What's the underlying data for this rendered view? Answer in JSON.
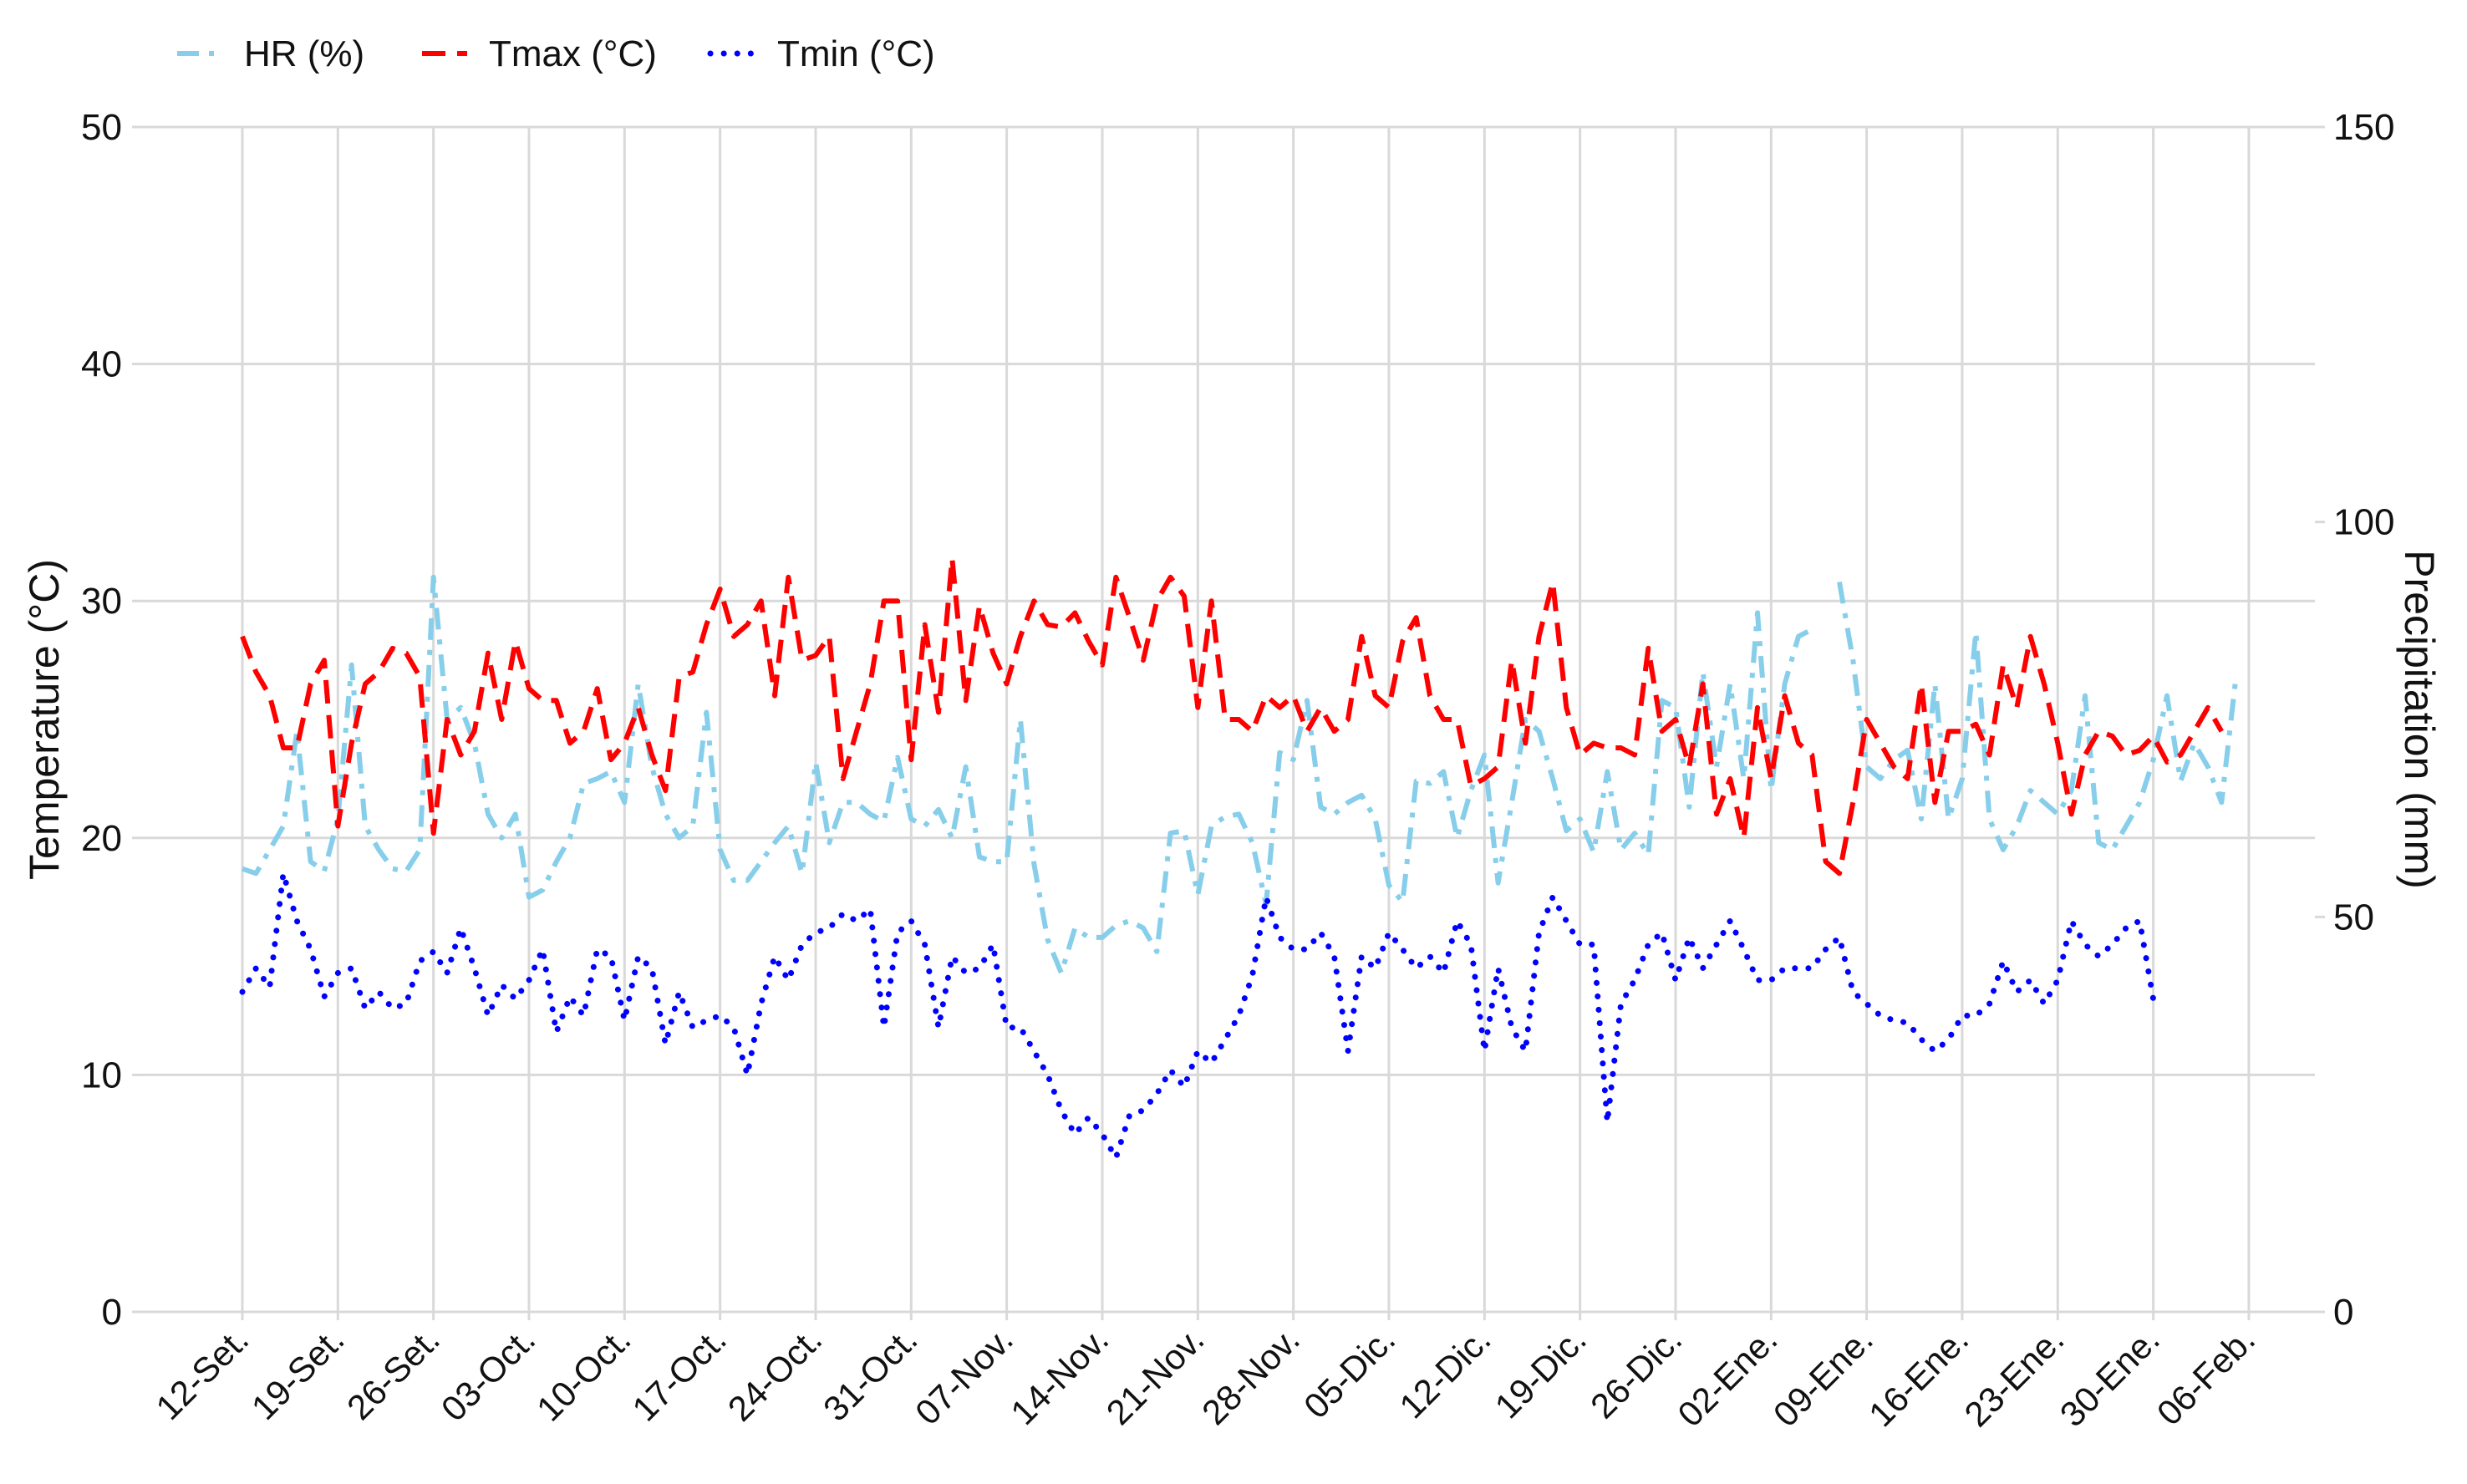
{
  "colors": {
    "hr": "#87CEEB",
    "tmax": "#FF0000",
    "tmin": "#0000FF",
    "precip_fill": "#9898F2",
    "precip_edge": "#4B4BA8"
  },
  "chart_data": {
    "type": "line",
    "legend": {
      "position": "top-left",
      "entries": [
        "HR (%)",
        "Tmax (°C)",
        "Tmin (°C)"
      ]
    },
    "ylabel": "Temperature (°C)",
    "y2label": "Precipitation (mm)",
    "ylim": [
      0,
      50
    ],
    "y2lim": [
      0,
      150
    ],
    "yticks": [
      "0",
      "10",
      "20",
      "30",
      "40",
      "50"
    ],
    "y2ticks": [
      "0",
      "50",
      "100",
      "150"
    ],
    "grid": true,
    "x_ticks": [
      {
        "day": 0,
        "label": "12-Set."
      },
      {
        "day": 7,
        "label": "19-Set."
      },
      {
        "day": 14,
        "label": "26-Set."
      },
      {
        "day": 21,
        "label": "03-Oct."
      },
      {
        "day": 28,
        "label": "10-Oct."
      },
      {
        "day": 35,
        "label": "17-Oct."
      },
      {
        "day": 42,
        "label": "24-Oct."
      },
      {
        "day": 49,
        "label": "31-Oct."
      },
      {
        "day": 56,
        "label": "07-Nov."
      },
      {
        "day": 63,
        "label": "14-Nov."
      },
      {
        "day": 70,
        "label": "21-Nov."
      },
      {
        "day": 77,
        "label": "28-Nov."
      },
      {
        "day": 84,
        "label": "05-Dic."
      },
      {
        "day": 91,
        "label": "12-Dic."
      },
      {
        "day": 98,
        "label": "19-Dic."
      },
      {
        "day": 105,
        "label": "26-Dic."
      },
      {
        "day": 112,
        "label": "02-Ene."
      },
      {
        "day": 119,
        "label": "09-Ene."
      },
      {
        "day": 126,
        "label": "16-Ene."
      },
      {
        "day": 133,
        "label": "23-Ene."
      },
      {
        "day": 140,
        "label": "30-Ene."
      },
      {
        "day": 147,
        "label": "06-Feb."
      }
    ],
    "series": [
      {
        "name": "HR (%)",
        "axis": "left",
        "style": "dashdot",
        "values": [
          18.7,
          18.5,
          19.5,
          20.5,
          24.5,
          19,
          18.6,
          20.8,
          27.3,
          20.5,
          19.5,
          18.7,
          18.6,
          19.5,
          31,
          25,
          25.5,
          24,
          21,
          20,
          21,
          17.5,
          17.8,
          19,
          20,
          22.3,
          22.5,
          22.8,
          21.5,
          26.5,
          23,
          21,
          20,
          20.5,
          25.3,
          19.5,
          18.2,
          18.2,
          19,
          19.8,
          20.5,
          18.5,
          23.2,
          19.8,
          21.5,
          21.5,
          21,
          20.7,
          23.4,
          20.8,
          20.5,
          21.2,
          20,
          23,
          19.2,
          19,
          19,
          25,
          18.9,
          15.7,
          14.3,
          16.2,
          15.8,
          15.8,
          16.3,
          16.5,
          16.2,
          15.2,
          20.2,
          20.3,
          17.6,
          20.5,
          20.9,
          21,
          19.8,
          17.2,
          23.6,
          23.3,
          25.8,
          21.3,
          21,
          21.5,
          21.8,
          20.8,
          18,
          17.3,
          22.4,
          22.3,
          22.8,
          20,
          22,
          23.5,
          18.1,
          21.5,
          25,
          24.5,
          22.5,
          20.3,
          20.8,
          19.4,
          22.8,
          19.5,
          20.2,
          19.3,
          25.8,
          25.5,
          21.3,
          27,
          23,
          26.5,
          22.5,
          29.5,
          22,
          26.5,
          28.5,
          28.8,
          null,
          30.8,
          27.5,
          23,
          22.5,
          23.3,
          23.7,
          20.8,
          26.5,
          20.8,
          22.5,
          28.7,
          20.8,
          19.5,
          20.5,
          22,
          21.5,
          21,
          22,
          26,
          19.8,
          19.5,
          20.5,
          21.5,
          23.3,
          26,
          22.4,
          24,
          23,
          21.5,
          26.5
        ]
      },
      {
        "name": "Tmax (°C)",
        "axis": "left",
        "style": "dashed",
        "values": [
          28.5,
          27,
          26,
          23.8,
          23.8,
          26.5,
          27.5,
          20.5,
          24,
          26.5,
          27,
          28,
          27.8,
          26.8,
          20.2,
          25,
          23.5,
          24.5,
          27.8,
          25,
          28.3,
          26.3,
          25.8,
          25.8,
          24,
          24.5,
          26.3,
          23.3,
          24,
          25.5,
          23.5,
          22,
          26.8,
          27,
          29,
          30.5,
          28.5,
          29,
          30,
          26,
          31,
          27.5,
          27.7,
          28.5,
          22.5,
          24.5,
          26.5,
          30,
          30,
          23.3,
          29,
          25.3,
          31.8,
          25.8,
          29.8,
          27.8,
          26.5,
          28.5,
          30,
          29,
          28.9,
          29.5,
          28.3,
          27.3,
          31,
          29.3,
          27.5,
          30,
          31,
          30.2,
          25.5,
          30,
          25,
          25,
          24.5,
          26,
          25.5,
          26,
          24.5,
          25.5,
          24.5,
          25,
          28.5,
          26,
          25.5,
          28.3,
          29.3,
          26,
          25,
          25,
          22.2,
          22.5,
          23,
          27.5,
          24,
          28.5,
          30.8,
          25.5,
          23.5,
          24,
          23.8,
          23.8,
          23.5,
          28,
          24.5,
          25,
          23,
          26.5,
          21,
          22.5,
          20,
          25.5,
          22.5,
          26,
          24,
          23.5,
          19,
          18.5,
          21.5,
          25,
          24,
          23,
          22.5,
          26.5,
          21.5,
          24.5,
          24.5,
          24.8,
          23.5,
          27.3,
          25.5,
          28.5,
          26.5,
          24,
          21,
          23.5,
          24.5,
          24.3,
          23.5,
          23.7,
          24.3,
          23.2,
          23.5,
          24.5,
          25.5,
          24.5
        ]
      },
      {
        "name": "Tmin (°C)",
        "axis": "left",
        "style": "dotted",
        "values": [
          13.5,
          14.5,
          13.7,
          18.5,
          16.5,
          15.3,
          13.3,
          14.3,
          14.5,
          12.8,
          13.5,
          12.8,
          13,
          14.8,
          15.2,
          14.3,
          16.2,
          14.5,
          12.5,
          13.8,
          13.2,
          14,
          15.3,
          11.8,
          13.3,
          12.5,
          15.3,
          15,
          12.3,
          15,
          14.5,
          11.3,
          13.5,
          12,
          12.3,
          12.5,
          12,
          10,
          13,
          15,
          14,
          15.5,
          16,
          16.2,
          16.8,
          16.5,
          17,
          12,
          16,
          16.5,
          15.5,
          12,
          15,
          14.3,
          14.5,
          15.5,
          12,
          12,
          11,
          10,
          8.5,
          7.5,
          8.2,
          7.5,
          6.5,
          8.3,
          8.5,
          9.2,
          10.2,
          9.5,
          11,
          10.5,
          11.5,
          12.5,
          14.2,
          17.5,
          15.8,
          15.3,
          15.3,
          16,
          15,
          11,
          15,
          14.5,
          16,
          15.3,
          14.5,
          15,
          14.3,
          16.5,
          15.5,
          11,
          14.5,
          12,
          11,
          16,
          17.5,
          16.5,
          15.5,
          15.5,
          8,
          13,
          14,
          15.5,
          16,
          14,
          15.8,
          14.5,
          15.5,
          16.5,
          15.3,
          14,
          14,
          14.5,
          14.5,
          14.5,
          15.3,
          15.8,
          13.5,
          13,
          12.5,
          12.3,
          12.2,
          11.5,
          11,
          11.5,
          12.5,
          12.5,
          13,
          14.8,
          13.5,
          14,
          13,
          14,
          16.5,
          15.5,
          15,
          15.5,
          16.2,
          16.5,
          13.2
        ]
      },
      {
        "name": "Precipitation",
        "axis": "right",
        "type": "bar",
        "values": [
          0,
          0,
          0,
          0,
          0,
          0,
          0,
          0,
          0,
          0,
          0,
          0,
          0,
          0,
          0,
          0,
          0,
          0,
          0,
          0,
          0,
          0,
          0,
          0,
          0,
          0,
          0,
          0,
          0,
          0,
          0,
          0,
          0,
          0,
          0,
          0,
          0,
          0,
          0,
          0,
          0,
          0,
          0,
          0,
          0,
          0,
          0,
          0,
          0,
          0,
          0,
          0,
          0,
          0,
          0,
          0,
          0,
          0,
          0,
          0,
          0,
          0,
          0,
          0,
          0,
          0,
          0,
          0,
          0,
          0,
          0,
          0,
          0,
          0,
          0,
          0,
          0,
          0,
          0,
          0,
          0,
          0,
          0,
          0,
          0,
          0,
          0,
          0,
          0,
          0,
          0,
          0,
          0,
          0,
          0,
          0,
          0,
          0,
          0,
          0,
          0,
          0,
          0,
          0,
          0,
          0,
          0,
          0,
          0,
          0,
          0,
          0,
          0,
          0,
          0,
          0,
          0,
          0,
          0,
          0,
          0,
          0,
          0,
          0,
          0,
          0,
          0,
          0,
          0,
          0,
          0,
          0,
          0,
          0,
          0,
          0,
          0,
          0,
          0,
          0,
          0,
          0,
          0,
          0,
          0,
          0,
          0
        ]
      }
    ]
  }
}
